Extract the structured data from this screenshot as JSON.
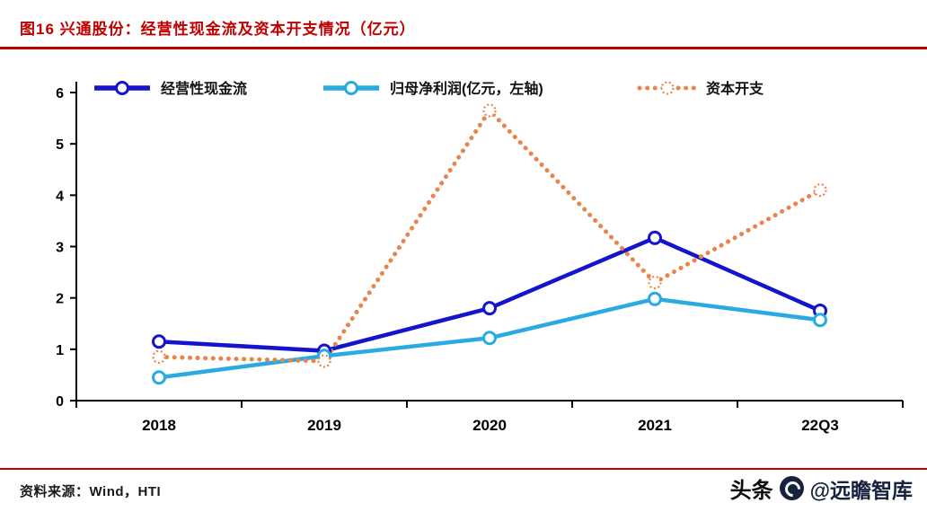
{
  "header": {
    "title": "图16  兴通股份：经营性现金流及资本开支情况（亿元）"
  },
  "footer": {
    "source": "资料来源：Wind，HTI",
    "watermark_prefix": "头条",
    "watermark_handle": "@远瞻智库"
  },
  "colors": {
    "accent_red": "#c00000",
    "axis_black": "#000000",
    "operating_cash_flow_blue": "#1414cc",
    "net_profit_cyan": "#29abe2",
    "capex_orange": "#e8854d",
    "watermark_navy": "#15233f"
  },
  "chart_data": {
    "type": "line",
    "title": "兴通股份：经营性现金流及资本开支情况（亿元）",
    "categories": [
      "2018",
      "2019",
      "2020",
      "2021",
      "22Q3"
    ],
    "series": [
      {
        "name": "经营性现金流",
        "color": "#1414cc",
        "style": "solid",
        "values": [
          1.15,
          0.97,
          1.8,
          3.17,
          1.75
        ]
      },
      {
        "name": "归母净利润(亿元，左轴)",
        "color": "#29abe2",
        "style": "solid",
        "values": [
          0.45,
          0.87,
          1.22,
          1.98,
          1.57
        ]
      },
      {
        "name": "资本开支",
        "color": "#e8854d",
        "style": "dotted",
        "values": [
          0.85,
          0.77,
          5.65,
          2.3,
          4.1
        ]
      }
    ],
    "xlabel": "",
    "ylabel": "",
    "ylim": [
      0,
      6
    ],
    "yticks": [
      0,
      1,
      2,
      3,
      4,
      5,
      6
    ],
    "grid": false,
    "legend_position": "top"
  }
}
